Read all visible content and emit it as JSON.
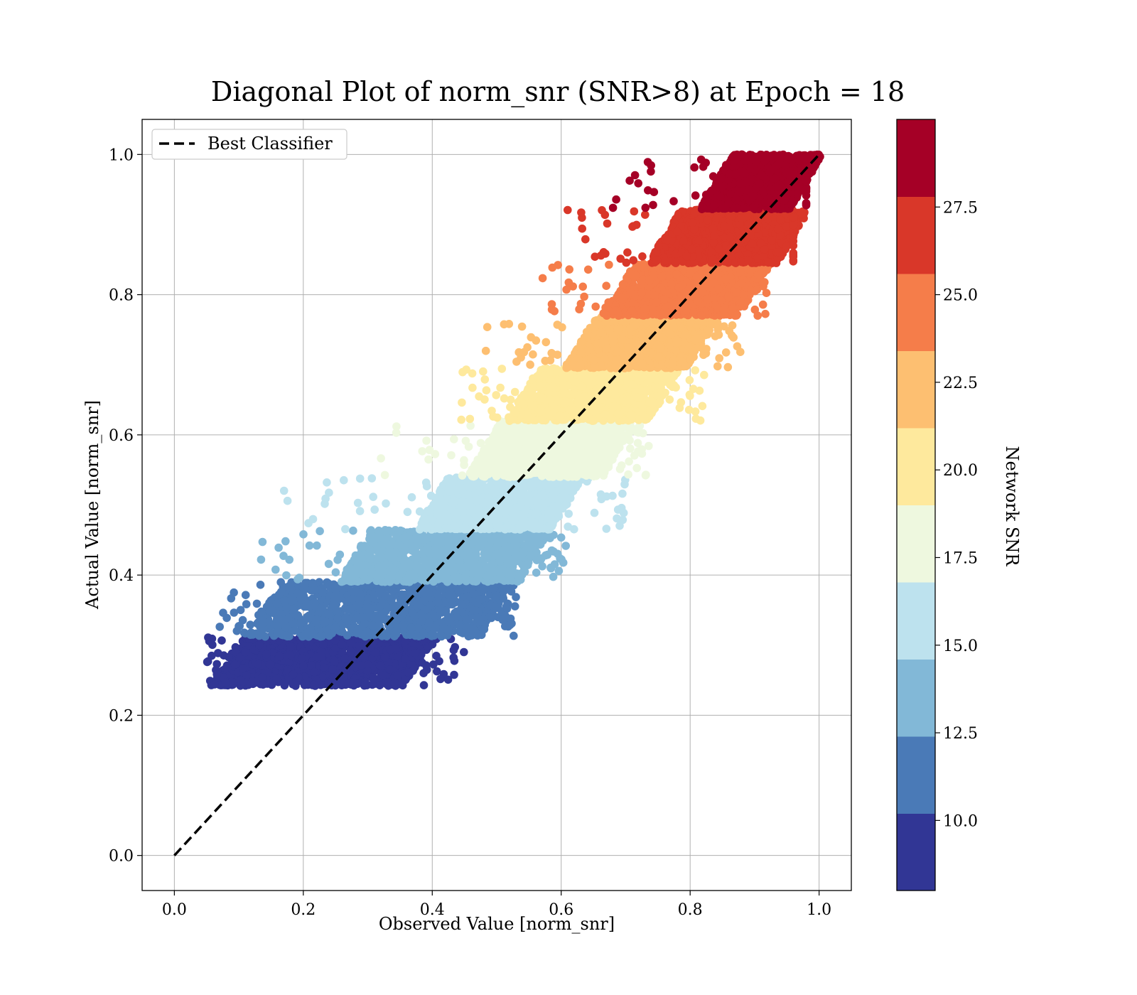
{
  "chart_data": {
    "type": "scatter",
    "title": "Diagonal Plot of norm_snr (SNR>8) at Epoch = 18",
    "xlabel": "Observed Value [norm_snr]",
    "ylabel": "Actual Value [norm_snr]",
    "xlim": [
      -0.05,
      1.05
    ],
    "ylim": [
      -0.05,
      1.05
    ],
    "x_ticks": [
      "0.0",
      "0.2",
      "0.4",
      "0.6",
      "0.8",
      "1.0"
    ],
    "y_ticks": [
      "0.0",
      "0.2",
      "0.4",
      "0.6",
      "0.8",
      "1.0"
    ],
    "grid": true,
    "legend": {
      "position": "top-left",
      "entries": [
        {
          "label": "Best Classifier",
          "style": "dashed",
          "color": "#000000"
        }
      ]
    },
    "reference_line": {
      "name": "Best Classifier",
      "x": [
        0.0,
        1.0
      ],
      "y": [
        0.0,
        1.0
      ]
    },
    "colorbar": {
      "label": "Network SNR",
      "range": [
        8,
        30
      ],
      "ticks": [
        "10.0",
        "12.5",
        "15.0",
        "17.5",
        "20.0",
        "22.5",
        "25.0",
        "27.5"
      ],
      "tick_values": [
        10.0,
        12.5,
        15.0,
        17.5,
        20.0,
        22.5,
        25.0,
        27.5
      ],
      "bins": [
        {
          "snr_min": 8.0,
          "snr_max": 10.2,
          "color": "#313695"
        },
        {
          "snr_min": 10.2,
          "snr_max": 12.4,
          "color": "#4a7ab7"
        },
        {
          "snr_min": 12.4,
          "snr_max": 14.6,
          "color": "#82b8d7"
        },
        {
          "snr_min": 14.6,
          "snr_max": 16.8,
          "color": "#bde2ee"
        },
        {
          "snr_min": 16.8,
          "snr_max": 19.0,
          "color": "#eef8df"
        },
        {
          "snr_min": 19.0,
          "snr_max": 21.2,
          "color": "#fee99d"
        },
        {
          "snr_min": 21.2,
          "snr_max": 23.4,
          "color": "#fdbf71"
        },
        {
          "snr_min": 23.4,
          "snr_max": 25.6,
          "color": "#f57d4a"
        },
        {
          "snr_min": 25.6,
          "snr_max": 27.8,
          "color": "#d93729"
        },
        {
          "snr_min": 27.8,
          "snr_max": 30.0,
          "color": "#a50026"
        }
      ]
    },
    "series": [
      {
        "y_range": [
          0.242,
          0.312
        ],
        "x_core": [
          0.08,
          0.38
        ],
        "x_extent": [
          0.05,
          0.45
        ],
        "color": "#313695"
      },
      {
        "y_range": [
          0.312,
          0.39
        ],
        "x_core": [
          0.14,
          0.5
        ],
        "x_extent": [
          0.07,
          0.53
        ],
        "color": "#4a7ab7"
      },
      {
        "y_range": [
          0.39,
          0.465
        ],
        "x_core": [
          0.28,
          0.56
        ],
        "x_extent": [
          0.11,
          0.61
        ],
        "color": "#82b8d7"
      },
      {
        "y_range": [
          0.465,
          0.54
        ],
        "x_core": [
          0.4,
          0.61
        ],
        "x_extent": [
          0.17,
          0.7
        ],
        "color": "#bde2ee"
      },
      {
        "y_range": [
          0.54,
          0.62
        ],
        "x_core": [
          0.48,
          0.69
        ],
        "x_extent": [
          0.32,
          0.74
        ],
        "color": "#eef8df"
      },
      {
        "y_range": [
          0.62,
          0.695
        ],
        "x_core": [
          0.54,
          0.76
        ],
        "x_extent": [
          0.44,
          0.83
        ],
        "color": "#fee99d"
      },
      {
        "y_range": [
          0.695,
          0.77
        ],
        "x_core": [
          0.63,
          0.82
        ],
        "x_extent": [
          0.48,
          0.88
        ],
        "color": "#fdbf71"
      },
      {
        "y_range": [
          0.77,
          0.845
        ],
        "x_core": [
          0.69,
          0.9
        ],
        "x_extent": [
          0.57,
          0.92
        ],
        "color": "#f57d4a"
      },
      {
        "y_range": [
          0.845,
          0.922
        ],
        "x_core": [
          0.76,
          0.96
        ],
        "x_extent": [
          0.61,
          0.96
        ],
        "color": "#d93729"
      },
      {
        "y_range": [
          0.922,
          1.0
        ],
        "x_core": [
          0.84,
          0.98
        ],
        "x_extent": [
          0.68,
          0.98
        ],
        "color": "#a50026"
      }
    ]
  }
}
